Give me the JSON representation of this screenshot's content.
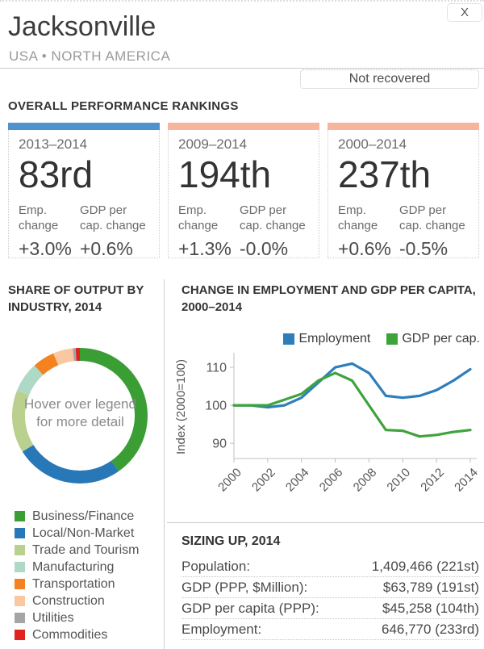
{
  "header": {
    "title": "Jacksonville",
    "subtitle": "USA • NORTH AMERICA",
    "close_label": "X",
    "status_label": "Not recovered"
  },
  "rankings": {
    "section_title": "OVERALL PERFORMANCE RANKINGS",
    "emp_col_label": "Emp. change",
    "gdp_col_label": "GDP per cap. change",
    "cards": [
      {
        "period": "2013–2014",
        "rank": "83rd",
        "emp_change": "+3.0%",
        "gdp_change": "+0.6%",
        "accent": "#4f93ce"
      },
      {
        "period": "2009–2014",
        "rank": "194th",
        "emp_change": "+1.3%",
        "gdp_change": "-0.0%",
        "accent": "#f6b59c"
      },
      {
        "period": "2000–2014",
        "rank": "237th",
        "emp_change": "+0.6%",
        "gdp_change": "-0.5%",
        "accent": "#f6b59c"
      }
    ]
  },
  "share_section": {
    "title": "SHARE OF OUTPUT BY INDUSTRY, 2014"
  },
  "employment_section": {
    "title": "CHANGE IN EMPLOYMENT AND GDP PER CAPITA, 2000–2014"
  },
  "sizing": {
    "title": "SIZING UP, 2014",
    "rows": [
      {
        "label": "Population:",
        "value": "1,409,466 (221st)"
      },
      {
        "label": "GDP (PPP, $Million):",
        "value": "$63,789 (191st)"
      },
      {
        "label": "GDP per capita (PPP):",
        "value": "$45,258 (104th)"
      },
      {
        "label": "Employment:",
        "value": "646,770 (233rd)"
      }
    ]
  },
  "chart_data": [
    {
      "type": "pie",
      "donut": true,
      "title": "SHARE OF OUTPUT BY INDUSTRY, 2014",
      "center_text": "Hover over legend for more detail",
      "labels": [
        "Business/Finance",
        "Local/Non-Market",
        "Trade and Tourism",
        "Manufacturing",
        "Transportation",
        "Construction",
        "Utilities",
        "Commodities"
      ],
      "values": [
        40.3,
        25.8,
        15.0,
        7.2,
        5.3,
        4.7,
        0.7,
        1.0
      ],
      "colors": [
        "#3a9e35",
        "#2878b8",
        "#b9d08f",
        "#aed9c6",
        "#f58220",
        "#f9c7a0",
        "#a5a5a5",
        "#e0231f"
      ],
      "legend_position": "bottom-left"
    },
    {
      "type": "line",
      "title": "CHANGE IN EMPLOYMENT AND GDP PER CAPITA, 2000–2014",
      "ylabel": "Index (2000=100)",
      "xlabel": "",
      "x": [
        2000,
        2001,
        2002,
        2003,
        2004,
        2005,
        2006,
        2007,
        2008,
        2009,
        2010,
        2011,
        2012,
        2013,
        2014
      ],
      "xticks": [
        2000,
        2002,
        2004,
        2006,
        2008,
        2010,
        2012,
        2014
      ],
      "yticks": [
        90,
        100,
        110
      ],
      "ylim": [
        86,
        113.2
      ],
      "grid": false,
      "legend_position": "top-right",
      "series": [
        {
          "name": "Employment",
          "color": "#2e7ebc",
          "values": [
            100,
            100,
            99.5,
            100,
            102,
            106,
            110,
            111,
            108.5,
            102.5,
            102,
            102.5,
            104,
            106.5,
            109.5
          ]
        },
        {
          "name": "GDP per cap.",
          "color": "#3fa33c",
          "values": [
            100,
            100,
            100,
            101.5,
            103,
            106.5,
            108.5,
            106.5,
            100,
            93.5,
            93.3,
            91.8,
            92.2,
            93,
            93.5
          ]
        }
      ]
    }
  ]
}
